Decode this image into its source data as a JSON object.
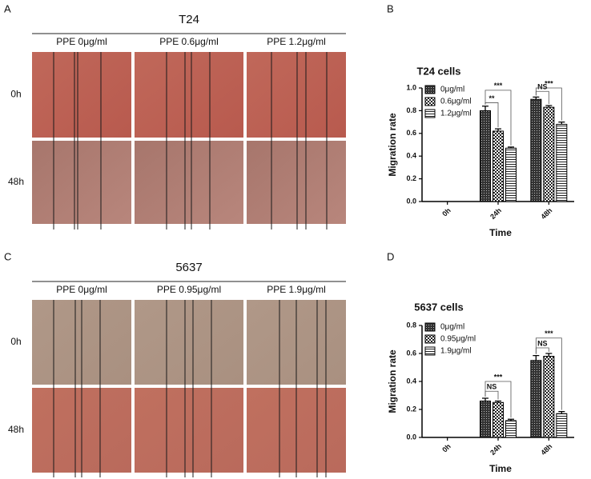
{
  "panel_labels": [
    "A",
    "B",
    "C",
    "D"
  ],
  "image_panels": [
    {
      "title": "T24",
      "columns": [
        "PPE 0μg/ml",
        "PPE 0.6μg/ml",
        "PPE 1.2μg/ml"
      ],
      "rows": [
        "0h",
        "48h"
      ]
    },
    {
      "title": "5637",
      "columns": [
        "PPE 0μg/ml",
        "PPE 0.95μg/ml",
        "PPE 1.9μg/ml"
      ],
      "rows": [
        "0h",
        "48h"
      ]
    }
  ],
  "chart_data": [
    {
      "type": "bar",
      "title": "T24 cells",
      "x_label": "Time",
      "y_label": "Migration rate",
      "categories": [
        "0h",
        "24h",
        "48h"
      ],
      "series": [
        {
          "name": "0μg/ml",
          "pattern": "crosshatch",
          "values": [
            0,
            0.8,
            0.9
          ],
          "errors": [
            0,
            0.04,
            0.02
          ]
        },
        {
          "name": "0.6μg/ml",
          "pattern": "checker",
          "values": [
            0,
            0.62,
            0.83
          ],
          "errors": [
            0,
            0.02,
            0.015
          ]
        },
        {
          "name": "1.2μg/ml",
          "pattern": "stripes",
          "values": [
            0,
            0.47,
            0.68
          ],
          "errors": [
            0,
            0.01,
            0.02
          ]
        }
      ],
      "ylim": [
        0,
        1
      ],
      "yticks": [
        {
          "value": 0,
          "label": "0.0"
        },
        0.2,
        0.4,
        0.6,
        0.8,
        {
          "value": 1,
          "label": "1.0"
        }
      ],
      "annotations": [
        "**",
        "***",
        "NS",
        "***"
      ]
    },
    {
      "type": "bar",
      "title": "5637 cells",
      "x_label": "Time",
      "y_label": "Migration rate",
      "categories": [
        "0h",
        "24h",
        "48h"
      ],
      "series": [
        {
          "name": "0μg/ml",
          "pattern": "crosshatch",
          "values": [
            0,
            0.26,
            0.55
          ],
          "errors": [
            0,
            0.02,
            0.035
          ]
        },
        {
          "name": "0.95μg/ml",
          "pattern": "checker",
          "values": [
            0,
            0.25,
            0.58
          ],
          "errors": [
            0,
            0.01,
            0.02
          ]
        },
        {
          "name": "1.9μg/ml",
          "pattern": "stripes",
          "values": [
            0,
            0.12,
            0.17
          ],
          "errors": [
            0,
            0.01,
            0.015
          ]
        }
      ],
      "ylim": [
        0,
        0.8
      ],
      "yticks": [
        {
          "value": 0,
          "label": "0.0"
        },
        0.2,
        0.4,
        0.6,
        0.8
      ],
      "annotations": [
        "NS",
        "***",
        "NS",
        "***"
      ]
    }
  ]
}
